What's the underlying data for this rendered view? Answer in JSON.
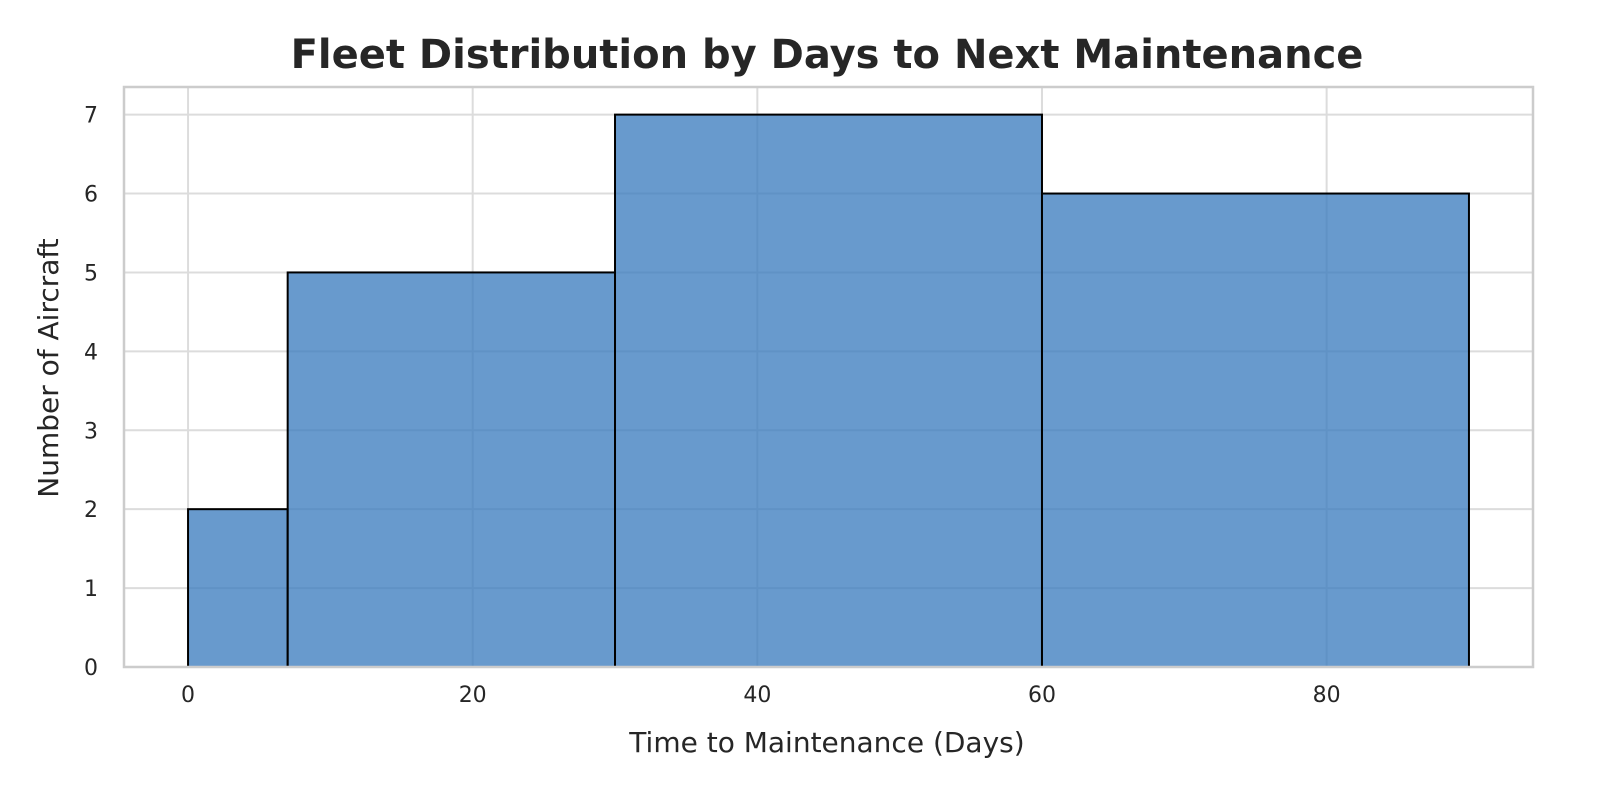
{
  "chart_data": {
    "type": "bar",
    "histogram": true,
    "title": "Fleet Distribution by Days to Next Maintenance",
    "xlabel": "Time to Maintenance (Days)",
    "ylabel": "Number of Aircraft",
    "bins": [
      {
        "x0": 0,
        "x1": 7,
        "value": 2
      },
      {
        "x0": 7,
        "x1": 30,
        "value": 5
      },
      {
        "x0": 30,
        "x1": 60,
        "value": 7
      },
      {
        "x0": 60,
        "x1": 90,
        "value": 6
      }
    ],
    "xlim": [
      -4.5,
      94.5
    ],
    "ylim": [
      0,
      7.35
    ],
    "xticks": [
      0,
      20,
      40,
      60,
      80
    ],
    "yticks": [
      0,
      1,
      2,
      3,
      4,
      5,
      6,
      7
    ],
    "grid": true,
    "legend": "none",
    "colors": {
      "bar_fill": "#3d7ebf",
      "bar_edge": "#000000",
      "grid": "#dcdcdc",
      "frame": "#cccccc",
      "text": "#262626"
    }
  }
}
